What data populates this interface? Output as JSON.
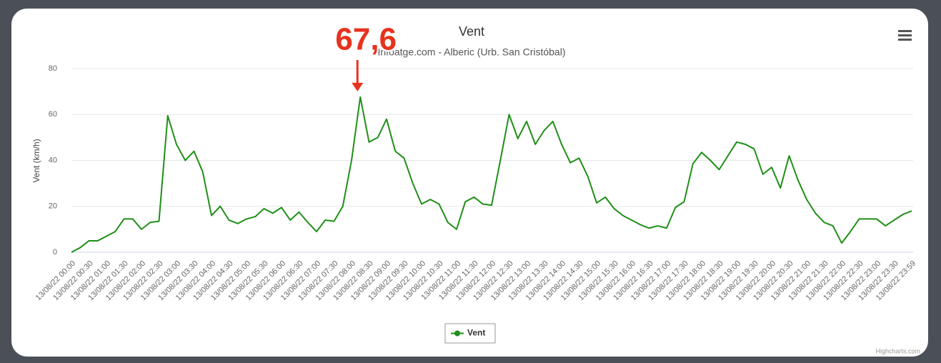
{
  "chart_data": {
    "type": "line",
    "title": "Vent",
    "subtitle": "Infoatge.com - Alberic (Urb. San Cristóbal)",
    "y_axis_label": "Vent (km/h)",
    "credit": "Highcharts.com",
    "ylim": [
      0,
      80
    ],
    "yticks": [
      0,
      20,
      40,
      60,
      80
    ],
    "grid": true,
    "legend": "bottom",
    "categories": [
      "13/08/22 00:00",
      null,
      "13/08/22 00:30",
      null,
      "13/08/22 01:00",
      null,
      "13/08/22 01:30",
      null,
      "13/08/22 02:00",
      null,
      "13/08/22 02:30",
      null,
      "13/08/22 03:00",
      null,
      "13/08/22 03:30",
      null,
      "13/08/22 04:00",
      null,
      "13/08/22 04:30",
      null,
      "13/08/22 05:00",
      null,
      "13/08/22 05:30",
      null,
      "13/08/22 06:00",
      null,
      "13/08/22 06:30",
      null,
      "13/08/22 07:00",
      null,
      "13/08/22 07:30",
      null,
      "13/08/22 08:00",
      null,
      "13/08/22 08:30",
      null,
      "13/08/22 09:00",
      null,
      "13/08/22 09:30",
      null,
      "13/08/22 10:00",
      null,
      "13/08/22 10:30",
      null,
      "13/08/22 11:00",
      null,
      "13/08/22 11:30",
      null,
      "13/08/22 12:00",
      null,
      "13/08/22 12:30",
      null,
      "13/08/22 13:00",
      null,
      "13/08/22 13:30",
      null,
      "13/08/22 14:00",
      null,
      "13/08/22 14:30",
      null,
      "13/08/22 15:00",
      null,
      "13/08/22 15:30",
      null,
      "13/08/22 16:00",
      null,
      "13/08/22 16:30",
      null,
      "13/08/22 17:00",
      null,
      "13/08/22 17:30",
      null,
      "13/08/22 18:00",
      null,
      "13/08/22 18:30",
      null,
      "13/08/22 19:00",
      null,
      "13/08/22 19:30",
      null,
      "13/08/22 20:00",
      null,
      "13/08/22 20:30",
      null,
      "13/08/22 21:00",
      null,
      "13/08/22 21:30",
      null,
      "13/08/22 22:00",
      null,
      "13/08/22 22:30",
      null,
      "13/08/22 23:00",
      null,
      "13/08/22 23:30",
      null,
      "13/08/22 23:59"
    ],
    "series": [
      {
        "name": "Vent",
        "color": "#1f8f17",
        "values": [
          0,
          2,
          5,
          5,
          7,
          9,
          14.5,
          14.5,
          10,
          13,
          13.5,
          59.5,
          47,
          40,
          44,
          35,
          16,
          20,
          14,
          12.5,
          14.5,
          15.5,
          19,
          17,
          19.5,
          14,
          17.5,
          13,
          9,
          14,
          13.5,
          20,
          40,
          67.6,
          48,
          50,
          58,
          44,
          41,
          30,
          21,
          23,
          21,
          13,
          10,
          22,
          24,
          21,
          20.5,
          40,
          60,
          49.5,
          57,
          47,
          53,
          57,
          47,
          39,
          41,
          33,
          21.5,
          24,
          19,
          16,
          14,
          12,
          10.5,
          11.5,
          10.5,
          19.5,
          22,
          38.5,
          43.5,
          40,
          36,
          42,
          48,
          47,
          45,
          34,
          37,
          28,
          42,
          31.5,
          23,
          17,
          13,
          11.5,
          4,
          9,
          14.5,
          14.5,
          14.5,
          11.5,
          14,
          16.5,
          18
        ],
        "value_labels": [
          null,
          null,
          null,
          null,
          null,
          null,
          null,
          null,
          null,
          null,
          null,
          null,
          null,
          null,
          null,
          null,
          null,
          null,
          null,
          null,
          null,
          null,
          null,
          null,
          null,
          null,
          null,
          null,
          null,
          null,
          null,
          null,
          null,
          "67,6",
          null,
          null,
          null,
          null,
          null,
          null,
          null,
          null,
          null,
          null,
          null,
          null,
          null,
          null,
          null,
          null,
          null,
          null,
          null,
          null,
          null,
          null,
          null,
          null,
          null,
          null,
          null,
          null,
          null,
          null,
          null,
          null,
          null,
          null,
          null,
          null,
          null,
          null,
          null,
          null,
          null,
          null,
          null,
          null,
          null,
          null,
          null,
          null,
          null,
          null,
          null,
          null,
          null,
          null,
          null,
          null,
          null,
          null,
          null,
          null,
          null,
          null,
          null
        ]
      }
    ]
  }
}
